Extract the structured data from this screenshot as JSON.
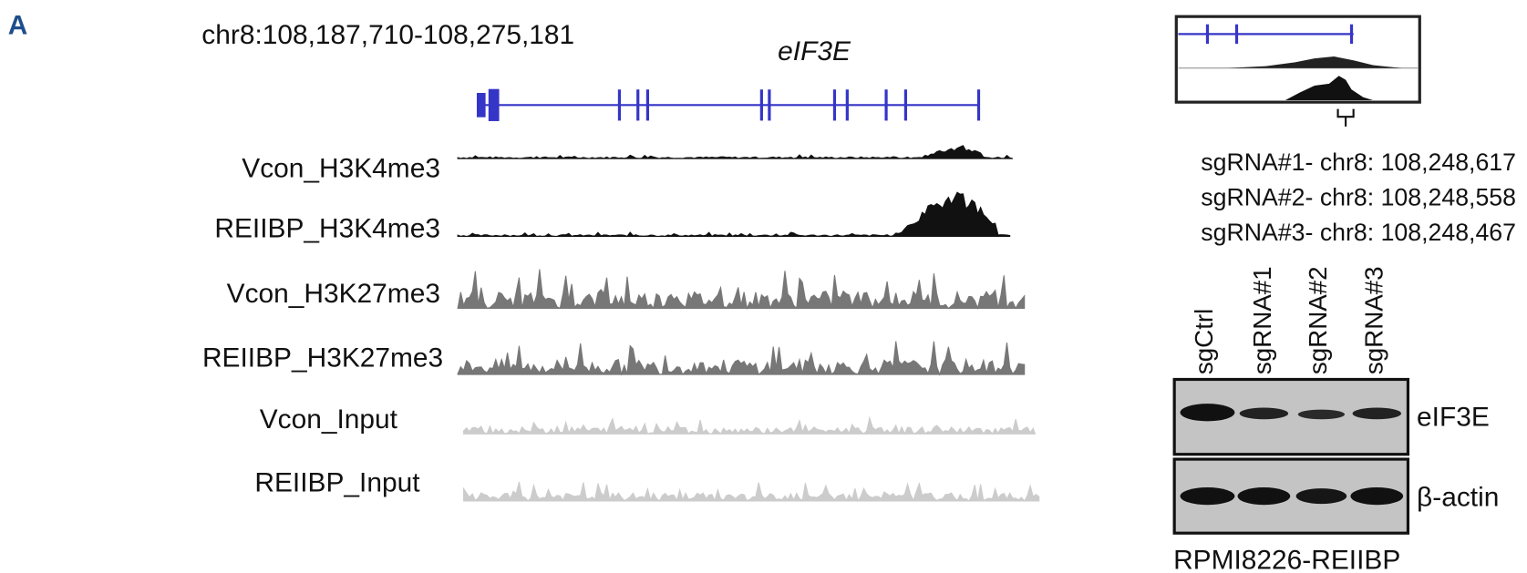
{
  "panel_label": "A",
  "locus": "chr8:108,187,710-108,275,181",
  "gene": "eIF3E",
  "tracks": [
    "Vcon_H3K4me3",
    "REIIBP_H3K4me3",
    "Vcon_H3K27me3",
    "REIIBP_H3K27me3",
    "Vcon_Input",
    "REIIBP_Input"
  ],
  "sgrnas": [
    "sgRNA#1- chr8: 108,248,617",
    "sgRNA#2- chr8: 108,248,558",
    "sgRNA#3- chr8: 108,248,467"
  ],
  "blot": {
    "lanes": [
      "sgCtrl",
      "sgRNA#1",
      "sgRNA#2",
      "sgRNA#3"
    ],
    "proteins": [
      "eIF3E",
      "β-actin"
    ],
    "cell_line": "RPMI8226-REIIBP"
  }
}
